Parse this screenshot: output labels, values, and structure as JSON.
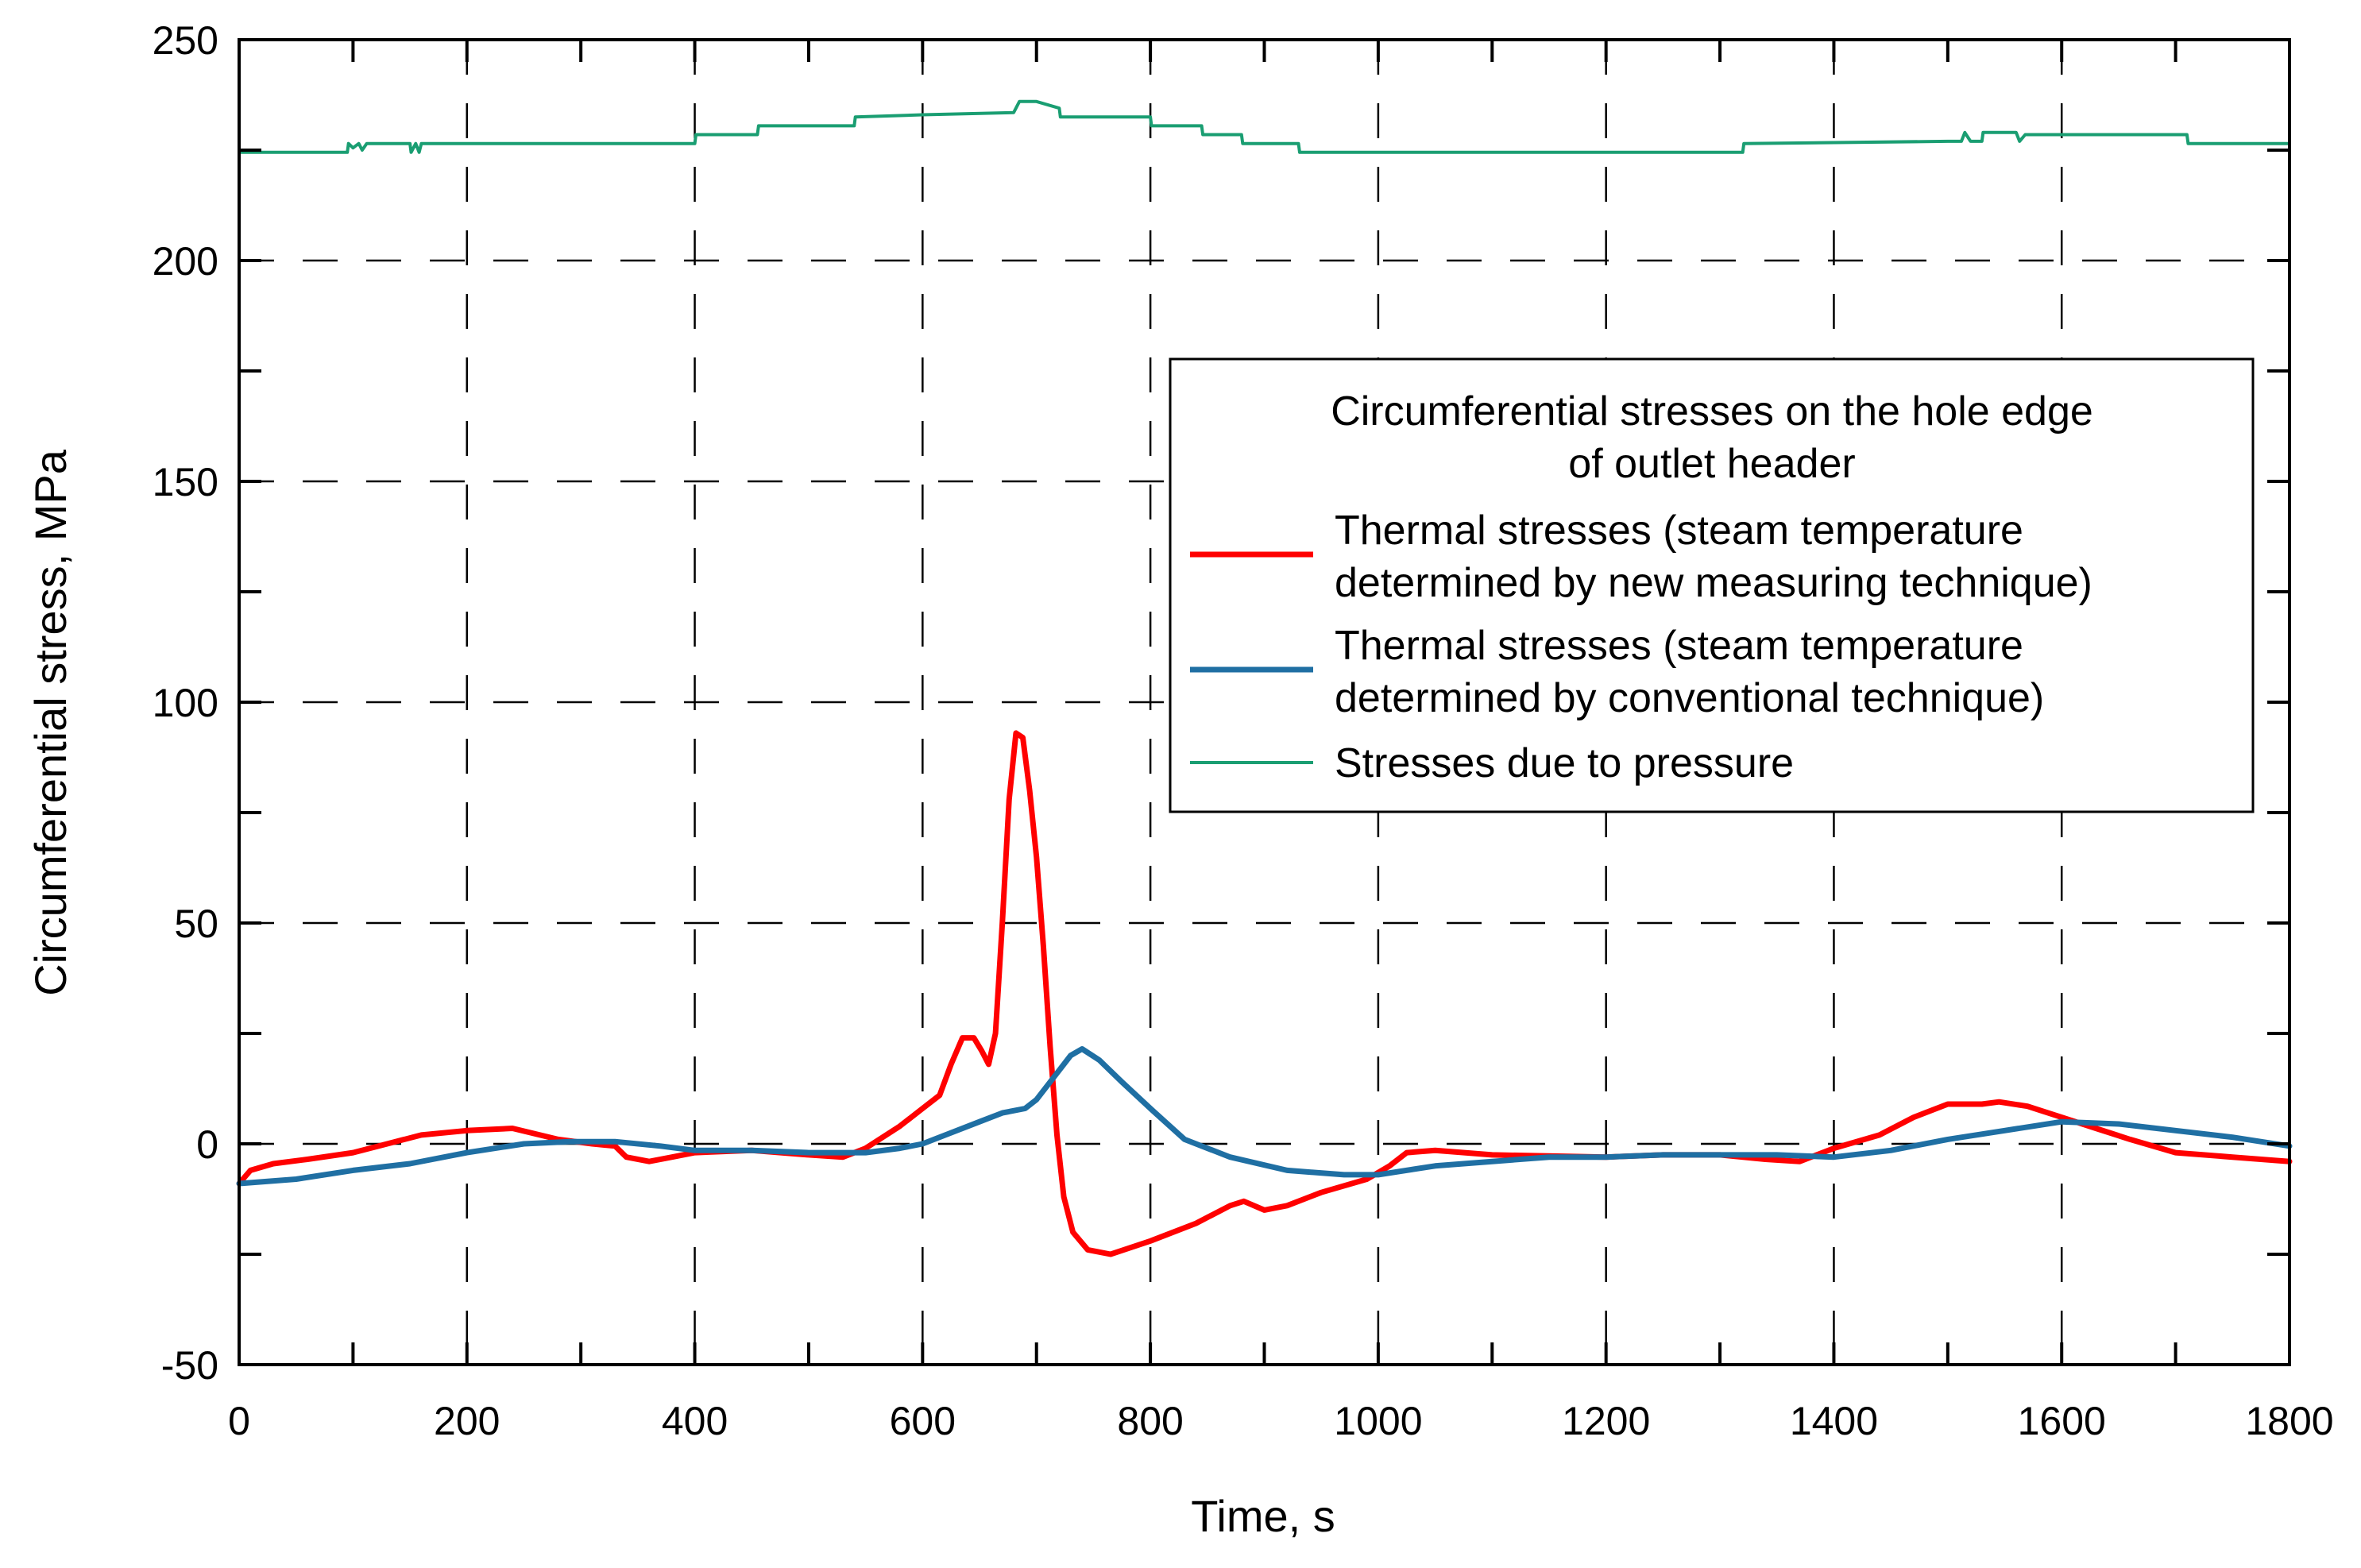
{
  "chart_data": {
    "type": "line",
    "title": "",
    "xlabel": "Time, s",
    "ylabel": "Circumferential stress, MPa",
    "xlim": [
      0,
      1800
    ],
    "ylim": [
      -50,
      250
    ],
    "x_major_ticks": [
      0,
      200,
      400,
      600,
      800,
      1000,
      1200,
      1400,
      1600,
      1800
    ],
    "x_minor_ticks": [
      100,
      300,
      500,
      700,
      900,
      1100,
      1300,
      1500,
      1700
    ],
    "y_major_ticks": [
      -50,
      0,
      50,
      100,
      150,
      200,
      250
    ],
    "y_minor_ticks": [
      -25,
      25,
      75,
      125,
      175,
      225
    ],
    "x_tick_labels": [
      "0",
      "200",
      "400",
      "600",
      "800",
      "1000",
      "1200",
      "1400",
      "1600",
      "1800"
    ],
    "y_tick_labels": [
      "-50",
      "0",
      "50",
      "100",
      "150",
      "200",
      "250"
    ],
    "grid": "dashed, major ticks",
    "legend": {
      "placement": "center-right",
      "title_lines": [
        "Circumferential stresses on the hole edge",
        "of outlet header"
      ],
      "entries": [
        {
          "series": 0,
          "lines": [
            "Thermal stresses (steam temperature",
            "determined by new measuring technique)"
          ]
        },
        {
          "series": 1,
          "lines": [
            "Thermal stresses (steam temperature",
            "determined by conventional technique)"
          ]
        },
        {
          "series": 2,
          "lines": [
            "Stresses due to pressure"
          ]
        }
      ]
    },
    "series": [
      {
        "name": "Thermal stresses (steam temperature determined by new measuring technique)",
        "color": "#ff0000",
        "width": "thick",
        "points": [
          [
            0,
            -9
          ],
          [
            10,
            -6
          ],
          [
            30,
            -4.5
          ],
          [
            60,
            -3.5
          ],
          [
            100,
            -2
          ],
          [
            130,
            0
          ],
          [
            160,
            2
          ],
          [
            200,
            3
          ],
          [
            240,
            3.5
          ],
          [
            280,
            1
          ],
          [
            310,
            0
          ],
          [
            330,
            -0.5
          ],
          [
            340,
            -3
          ],
          [
            360,
            -4
          ],
          [
            380,
            -3
          ],
          [
            400,
            -2
          ],
          [
            450,
            -1.5
          ],
          [
            500,
            -2.5
          ],
          [
            530,
            -3
          ],
          [
            550,
            -1
          ],
          [
            580,
            4
          ],
          [
            600,
            8
          ],
          [
            615,
            11
          ],
          [
            625,
            18
          ],
          [
            635,
            24
          ],
          [
            645,
            24
          ],
          [
            652,
            21
          ],
          [
            658,
            18
          ],
          [
            664,
            25
          ],
          [
            670,
            50
          ],
          [
            676,
            78
          ],
          [
            682,
            93
          ],
          [
            688,
            92
          ],
          [
            694,
            80
          ],
          [
            700,
            65
          ],
          [
            706,
            45
          ],
          [
            712,
            22
          ],
          [
            718,
            2
          ],
          [
            724,
            -12
          ],
          [
            732,
            -20
          ],
          [
            745,
            -24
          ],
          [
            765,
            -25
          ],
          [
            800,
            -22
          ],
          [
            840,
            -18
          ],
          [
            870,
            -14
          ],
          [
            882,
            -13
          ],
          [
            900,
            -15
          ],
          [
            920,
            -14
          ],
          [
            950,
            -11
          ],
          [
            990,
            -8
          ],
          [
            1010,
            -5
          ],
          [
            1025,
            -2
          ],
          [
            1050,
            -1.5
          ],
          [
            1100,
            -2.5
          ],
          [
            1200,
            -3
          ],
          [
            1250,
            -2.5
          ],
          [
            1300,
            -2.5
          ],
          [
            1340,
            -3.5
          ],
          [
            1370,
            -4
          ],
          [
            1400,
            -1
          ],
          [
            1440,
            2
          ],
          [
            1470,
            6
          ],
          [
            1500,
            9
          ],
          [
            1530,
            9
          ],
          [
            1545,
            9.5
          ],
          [
            1570,
            8.5
          ],
          [
            1600,
            6
          ],
          [
            1630,
            3.5
          ],
          [
            1660,
            1
          ],
          [
            1700,
            -2
          ],
          [
            1750,
            -3
          ],
          [
            1800,
            -4
          ]
        ]
      },
      {
        "name": "Thermal stresses (steam temperature determined by conventional technique)",
        "color": "#1f6fa3",
        "width": "thick",
        "points": [
          [
            0,
            -9
          ],
          [
            50,
            -8
          ],
          [
            100,
            -6
          ],
          [
            150,
            -4.5
          ],
          [
            200,
            -2
          ],
          [
            250,
            0
          ],
          [
            290,
            0.5
          ],
          [
            330,
            0.5
          ],
          [
            370,
            -0.5
          ],
          [
            400,
            -1.5
          ],
          [
            450,
            -1.5
          ],
          [
            500,
            -2
          ],
          [
            550,
            -2
          ],
          [
            580,
            -1
          ],
          [
            600,
            0
          ],
          [
            620,
            2
          ],
          [
            650,
            5
          ],
          [
            670,
            7
          ],
          [
            690,
            8
          ],
          [
            700,
            10
          ],
          [
            715,
            15
          ],
          [
            730,
            20
          ],
          [
            740,
            21.5
          ],
          [
            755,
            19
          ],
          [
            775,
            14
          ],
          [
            800,
            8
          ],
          [
            830,
            1
          ],
          [
            870,
            -3
          ],
          [
            920,
            -6
          ],
          [
            970,
            -7
          ],
          [
            1000,
            -7
          ],
          [
            1050,
            -5
          ],
          [
            1100,
            -4
          ],
          [
            1150,
            -3
          ],
          [
            1200,
            -3
          ],
          [
            1250,
            -2.5
          ],
          [
            1300,
            -2.5
          ],
          [
            1350,
            -2.5
          ],
          [
            1400,
            -3
          ],
          [
            1450,
            -1.5
          ],
          [
            1500,
            1
          ],
          [
            1550,
            3
          ],
          [
            1600,
            5
          ],
          [
            1650,
            4.5
          ],
          [
            1700,
            3
          ],
          [
            1750,
            1.5
          ],
          [
            1800,
            -0.5
          ]
        ]
      },
      {
        "name": "Stresses due to pressure",
        "color": "#1a9e72",
        "width": "thin",
        "points": [
          [
            0,
            224.5
          ],
          [
            95,
            224.5
          ],
          [
            96,
            226.5
          ],
          [
            100,
            225.5
          ],
          [
            105,
            226.5
          ],
          [
            108,
            225
          ],
          [
            112,
            226.5
          ],
          [
            150,
            226.5
          ],
          [
            151,
            224.5
          ],
          [
            155,
            226.5
          ],
          [
            158,
            224.5
          ],
          [
            160,
            226.5
          ],
          [
            400,
            226.5
          ],
          [
            401,
            228.5
          ],
          [
            455,
            228.5
          ],
          [
            456,
            230.5
          ],
          [
            540,
            230.5
          ],
          [
            541,
            232.5
          ],
          [
            600,
            233
          ],
          [
            680,
            233.5
          ],
          [
            685,
            236
          ],
          [
            700,
            236
          ],
          [
            720,
            234.5
          ],
          [
            721,
            232.5
          ],
          [
            800,
            232.5
          ],
          [
            801,
            230.5
          ],
          [
            845,
            230.5
          ],
          [
            846,
            228.5
          ],
          [
            880,
            228.5
          ],
          [
            881,
            226.5
          ],
          [
            930,
            226.5
          ],
          [
            931,
            224.5
          ],
          [
            1000,
            224.5
          ],
          [
            1100,
            224.5
          ],
          [
            1200,
            224.5
          ],
          [
            1320,
            224.5
          ],
          [
            1321,
            226.5
          ],
          [
            1500,
            227
          ],
          [
            1512,
            227
          ],
          [
            1515,
            229
          ],
          [
            1520,
            227
          ],
          [
            1530,
            227
          ],
          [
            1531,
            229
          ],
          [
            1560,
            229
          ],
          [
            1563,
            227
          ],
          [
            1568,
            228.5
          ],
          [
            1600,
            228.5
          ],
          [
            1710,
            228.5
          ],
          [
            1711,
            226.5
          ],
          [
            1800,
            226.5
          ]
        ]
      }
    ]
  }
}
